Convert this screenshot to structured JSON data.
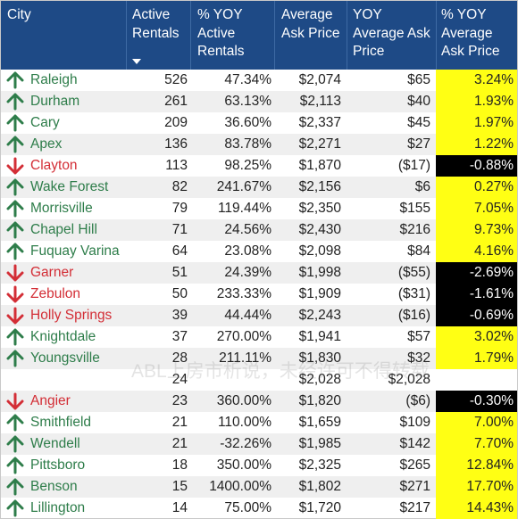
{
  "header": {
    "city": "City",
    "active_rentals": "Active\nRentals",
    "pct_yoy_active": "% YOY\nActive\nRentals",
    "avg_ask_price": "Average\nAsk Price",
    "yoy_avg_ask": "YOY\nAverage Ask\nPrice",
    "pct_yoy_avg_ask": "% YOY\nAverage\nAsk Price"
  },
  "watermark": "ABL上房市析说，未经许可不得转载",
  "colors": {
    "header_bg": "#1e4a86",
    "up": "#2e7d4a",
    "down": "#d32e36",
    "positive_fill": "#ffff14",
    "negative_fill": "#000000"
  },
  "rows": [
    {
      "trend": "up",
      "city": "Raleigh",
      "active": "526",
      "pct_active": "47.34%",
      "avg_ask": "$2,074",
      "yoy_ask": "$65",
      "pct_ask": "3.24%",
      "sign": "pos"
    },
    {
      "trend": "up",
      "city": "Durham",
      "active": "261",
      "pct_active": "63.13%",
      "avg_ask": "$2,113",
      "yoy_ask": "$40",
      "pct_ask": "1.93%",
      "sign": "pos"
    },
    {
      "trend": "up",
      "city": "Cary",
      "active": "209",
      "pct_active": "36.60%",
      "avg_ask": "$2,337",
      "yoy_ask": "$45",
      "pct_ask": "1.97%",
      "sign": "pos"
    },
    {
      "trend": "up",
      "city": "Apex",
      "active": "136",
      "pct_active": "83.78%",
      "avg_ask": "$2,271",
      "yoy_ask": "$27",
      "pct_ask": "1.22%",
      "sign": "pos"
    },
    {
      "trend": "down",
      "city": "Clayton",
      "active": "113",
      "pct_active": "98.25%",
      "avg_ask": "$1,870",
      "yoy_ask": "($17)",
      "pct_ask": "-0.88%",
      "sign": "neg"
    },
    {
      "trend": "up",
      "city": "Wake Forest",
      "active": "82",
      "pct_active": "241.67%",
      "avg_ask": "$2,156",
      "yoy_ask": "$6",
      "pct_ask": "0.27%",
      "sign": "pos"
    },
    {
      "trend": "up",
      "city": "Morrisville",
      "active": "79",
      "pct_active": "119.44%",
      "avg_ask": "$2,350",
      "yoy_ask": "$155",
      "pct_ask": "7.05%",
      "sign": "pos"
    },
    {
      "trend": "up",
      "city": "Chapel Hill",
      "active": "71",
      "pct_active": "24.56%",
      "avg_ask": "$2,430",
      "yoy_ask": "$216",
      "pct_ask": "9.73%",
      "sign": "pos"
    },
    {
      "trend": "up",
      "city": "Fuquay Varina",
      "active": "64",
      "pct_active": "23.08%",
      "avg_ask": "$2,098",
      "yoy_ask": "$84",
      "pct_ask": "4.16%",
      "sign": "pos"
    },
    {
      "trend": "down",
      "city": "Garner",
      "active": "51",
      "pct_active": "24.39%",
      "avg_ask": "$1,998",
      "yoy_ask": "($55)",
      "pct_ask": "-2.69%",
      "sign": "neg"
    },
    {
      "trend": "down",
      "city": "Zebulon",
      "active": "50",
      "pct_active": "233.33%",
      "avg_ask": "$1,909",
      "yoy_ask": "($31)",
      "pct_ask": "-1.61%",
      "sign": "neg"
    },
    {
      "trend": "down",
      "city": "Holly Springs",
      "active": "39",
      "pct_active": "44.44%",
      "avg_ask": "$2,243",
      "yoy_ask": "($16)",
      "pct_ask": "-0.69%",
      "sign": "neg"
    },
    {
      "trend": "up",
      "city": "Knightdale",
      "active": "37",
      "pct_active": "270.00%",
      "avg_ask": "$1,941",
      "yoy_ask": "$57",
      "pct_ask": "3.02%",
      "sign": "pos"
    },
    {
      "trend": "up",
      "city": "Youngsville",
      "active": "28",
      "pct_active": "211.11%",
      "avg_ask": "$1,830",
      "yoy_ask": "$32",
      "pct_ask": "1.79%",
      "sign": "pos"
    },
    {
      "trend": "",
      "city": "",
      "active": "24",
      "pct_active": "",
      "avg_ask": "$2,028",
      "yoy_ask": "$2,028",
      "pct_ask": "",
      "sign": "none"
    },
    {
      "trend": "down",
      "city": "Angier",
      "active": "23",
      "pct_active": "360.00%",
      "avg_ask": "$1,820",
      "yoy_ask": "($6)",
      "pct_ask": "-0.30%",
      "sign": "neg"
    },
    {
      "trend": "up",
      "city": "Smithfield",
      "active": "21",
      "pct_active": "110.00%",
      "avg_ask": "$1,659",
      "yoy_ask": "$109",
      "pct_ask": "7.00%",
      "sign": "pos"
    },
    {
      "trend": "up",
      "city": "Wendell",
      "active": "21",
      "pct_active": "-32.26%",
      "avg_ask": "$1,985",
      "yoy_ask": "$142",
      "pct_ask": "7.70%",
      "sign": "pos"
    },
    {
      "trend": "up",
      "city": "Pittsboro",
      "active": "18",
      "pct_active": "350.00%",
      "avg_ask": "$2,325",
      "yoy_ask": "$265",
      "pct_ask": "12.84%",
      "sign": "pos"
    },
    {
      "trend": "up",
      "city": "Benson",
      "active": "15",
      "pct_active": "1400.00%",
      "avg_ask": "$1,802",
      "yoy_ask": "$271",
      "pct_ask": "17.70%",
      "sign": "pos"
    },
    {
      "trend": "up",
      "city": "Lillington",
      "active": "14",
      "pct_active": "75.00%",
      "avg_ask": "$1,720",
      "yoy_ask": "$217",
      "pct_ask": "14.43%",
      "sign": "pos"
    }
  ]
}
